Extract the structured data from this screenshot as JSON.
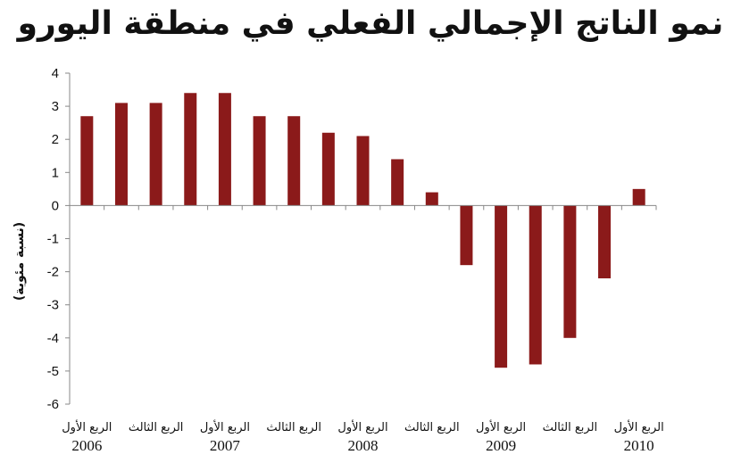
{
  "chart_data": {
    "type": "bar",
    "title": "نمو الناتج الإجمالي الفعلي في منطقة اليورو",
    "ylabel": "(نسبة مئوية)",
    "xlabel": "",
    "ylim": [
      -6,
      4
    ],
    "yticks": [
      4,
      3,
      2,
      1,
      0,
      -1,
      -2,
      -3,
      -4,
      -5,
      -6
    ],
    "grid": false,
    "legend": "none",
    "bar_color": "#8b1a1a",
    "categories": [
      "2006 Q1",
      "2006 Q2",
      "2006 Q3",
      "2006 Q4",
      "2007 Q1",
      "2007 Q2",
      "2007 Q3",
      "2007 Q4",
      "2008 Q1",
      "2008 Q2",
      "2008 Q3",
      "2008 Q4",
      "2009 Q1",
      "2009 Q2",
      "2009 Q3",
      "2009 Q4",
      "2010 Q1"
    ],
    "values": [
      2.7,
      3.1,
      3.1,
      3.4,
      3.4,
      2.7,
      2.7,
      2.2,
      2.1,
      1.4,
      0.4,
      -1.8,
      -4.9,
      -4.8,
      -4.0,
      -2.2,
      0.5
    ],
    "x_tick_labels": [
      {
        "quarter": "الربع الأول",
        "year": "2006"
      },
      {
        "quarter": "الربع الثالث",
        "year": ""
      },
      {
        "quarter": "الربع الأول",
        "year": "2007"
      },
      {
        "quarter": "الربع الثالث",
        "year": ""
      },
      {
        "quarter": "الربع الأول",
        "year": "2008"
      },
      {
        "quarter": "الربع الثالث",
        "year": ""
      },
      {
        "quarter": "الربع الأول",
        "year": "2009"
      },
      {
        "quarter": "الربع الثالث",
        "year": ""
      },
      {
        "quarter": "الربع الأول",
        "year": "2010"
      }
    ]
  }
}
